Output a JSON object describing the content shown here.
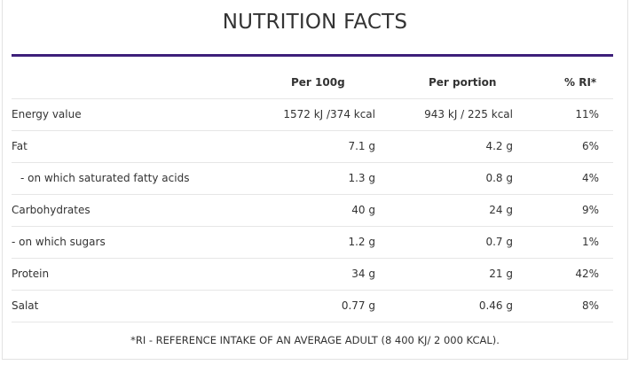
{
  "title": "NUTRITION FACTS",
  "colors": {
    "accent_rule": "#3e1f7a",
    "text": "#333333",
    "row_border": "#e6e6e6"
  },
  "table": {
    "headers": {
      "name": "",
      "per100": "Per 100g",
      "portion": "Per portion",
      "ri": "% RI*"
    },
    "rows": [
      {
        "name": "Energy value",
        "per100": "1572 kJ /374 kcal",
        "portion": "943 kJ / 225 kcal",
        "ri": "11%"
      },
      {
        "name": "Fat",
        "per100": "7.1 g",
        "portion": "4.2 g",
        "ri": "6%"
      },
      {
        "name": "- on which saturated fatty acids",
        "per100": "1.3 g",
        "portion": "0.8 g",
        "ri": "4%"
      },
      {
        "name": "Carbohydrates",
        "per100": "40 g",
        "portion": "24 g",
        "ri": "9%"
      },
      {
        "name": "- on which sugars",
        "per100": "1.2 g",
        "portion": "0.7 g",
        "ri": "1%"
      },
      {
        "name": "Protein",
        "per100": "34 g",
        "portion": "21 g",
        "ri": "42%"
      },
      {
        "name": "Salat",
        "per100": "0.77 g",
        "portion": "0.46 g",
        "ri": "8%"
      }
    ]
  },
  "footnote": "*RI - REFERENCE INTAKE OF AN AVERAGE ADULT (8 400 KJ/ 2 000 KCAL)."
}
